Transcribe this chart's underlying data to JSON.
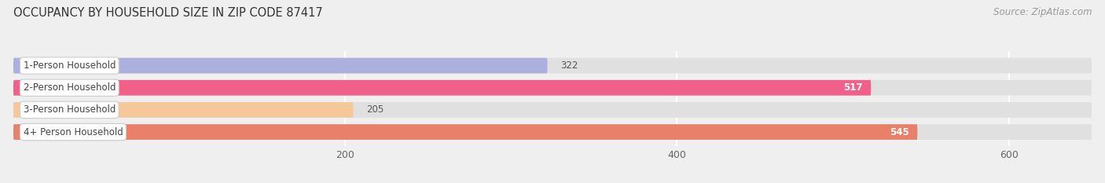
{
  "title": "OCCUPANCY BY HOUSEHOLD SIZE IN ZIP CODE 87417",
  "source": "Source: ZipAtlas.com",
  "categories": [
    "1-Person Household",
    "2-Person Household",
    "3-Person Household",
    "4+ Person Household"
  ],
  "values": [
    322,
    517,
    205,
    545
  ],
  "bar_colors": [
    "#abb0dc",
    "#f0608a",
    "#f5c89a",
    "#e8806a"
  ],
  "background_color": "#efefef",
  "bar_bg_color": "#e0e0e0",
  "xlim": [
    0,
    650
  ],
  "xticks": [
    200,
    400,
    600
  ],
  "title_fontsize": 10.5,
  "source_fontsize": 8.5,
  "label_fontsize": 8.5,
  "value_fontsize": 8.5
}
